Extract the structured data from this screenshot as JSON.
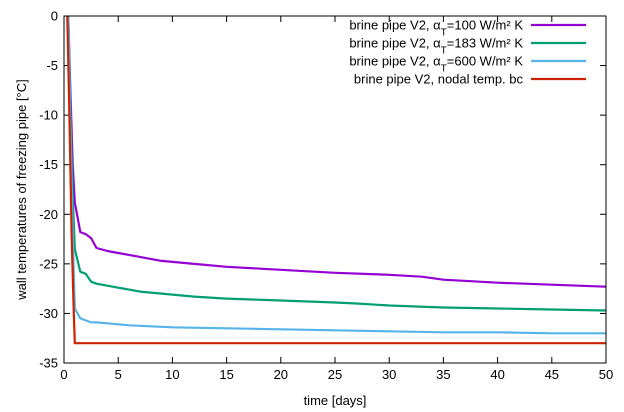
{
  "chart_data": {
    "type": "line",
    "xlabel": "time [days]",
    "ylabel": "wall temperatures of freezing pipe [°C]",
    "xlim": [
      0,
      50
    ],
    "ylim": [
      -35,
      0
    ],
    "xticks": [
      0,
      5,
      10,
      15,
      20,
      25,
      30,
      35,
      40,
      45,
      50
    ],
    "yticks": [
      0,
      -5,
      -10,
      -15,
      -20,
      -25,
      -30,
      -35
    ],
    "grid": false,
    "legend_position": "top-right",
    "series": [
      {
        "name": "brine pipe V2, αT=100 W/m² K",
        "legend": {
          "pre": "brine pipe V2, α",
          "sub": "T",
          "post": "=100 W/m² K"
        },
        "color": "#9400d3",
        "x": [
          0.4,
          0.6,
          0.8,
          1.0,
          1.5,
          2.0,
          2.5,
          3.0,
          4.0,
          5.0,
          6.0,
          7.0,
          8.0,
          9.0,
          10.0,
          12.0,
          15.0,
          20.0,
          25.0,
          30.0,
          33.0,
          35.0,
          40.0,
          45.0,
          50.0
        ],
        "y": [
          0,
          -8,
          -15,
          -18.8,
          -21.8,
          -22.0,
          -22.4,
          -23.4,
          -23.7,
          -23.9,
          -24.1,
          -24.3,
          -24.5,
          -24.7,
          -24.8,
          -25.0,
          -25.3,
          -25.6,
          -25.9,
          -26.1,
          -26.3,
          -26.6,
          -26.9,
          -27.1,
          -27.3
        ]
      },
      {
        "name": "brine pipe V2, αT=183 W/m² K",
        "legend": {
          "pre": "brine pipe V2, α",
          "sub": "T",
          "post": "=183 W/m² K"
        },
        "color": "#009e73",
        "x": [
          0.4,
          0.6,
          0.8,
          1.0,
          1.5,
          2.0,
          2.5,
          3.0,
          4.0,
          5.0,
          6.0,
          7.0,
          8.0,
          10.0,
          12.0,
          15.0,
          20.0,
          25.0,
          27.0,
          30.0,
          35.0,
          40.0,
          45.0,
          50.0
        ],
        "y": [
          0,
          -10,
          -18,
          -23.5,
          -25.8,
          -26.0,
          -26.8,
          -27.0,
          -27.2,
          -27.4,
          -27.6,
          -27.8,
          -27.9,
          -28.1,
          -28.3,
          -28.5,
          -28.7,
          -28.9,
          -29.0,
          -29.2,
          -29.4,
          -29.5,
          -29.6,
          -29.7
        ]
      },
      {
        "name": "brine pipe V2, αT=600 W/m² K",
        "legend": {
          "pre": "brine pipe V2, α",
          "sub": "T",
          "post": "=600 W/m² K"
        },
        "color": "#56b4e9",
        "x": [
          0.4,
          0.6,
          0.8,
          1.0,
          1.5,
          2.0,
          2.5,
          3.0,
          4.0,
          5.0,
          6.0,
          8.0,
          10.0,
          15.0,
          20.0,
          25.0,
          30.0,
          35.0,
          40.0,
          45.0,
          50.0
        ],
        "y": [
          0,
          -12,
          -22,
          -29.5,
          -30.5,
          -30.7,
          -30.9,
          -30.9,
          -31.0,
          -31.1,
          -31.2,
          -31.3,
          -31.4,
          -31.5,
          -31.6,
          -31.7,
          -31.8,
          -31.9,
          -31.9,
          -32.0,
          -32.0
        ]
      },
      {
        "name": "brine pipe V2, nodal temp. bc",
        "legend": {
          "pre": "brine pipe V2, nodal temp. bc",
          "sub": "",
          "post": ""
        },
        "color": "#cc2200",
        "x": [
          0.3,
          0.5,
          0.7,
          0.9,
          1.0,
          50.0
        ],
        "y": [
          0,
          -10,
          -22,
          -30,
          -33,
          -33
        ]
      }
    ]
  }
}
